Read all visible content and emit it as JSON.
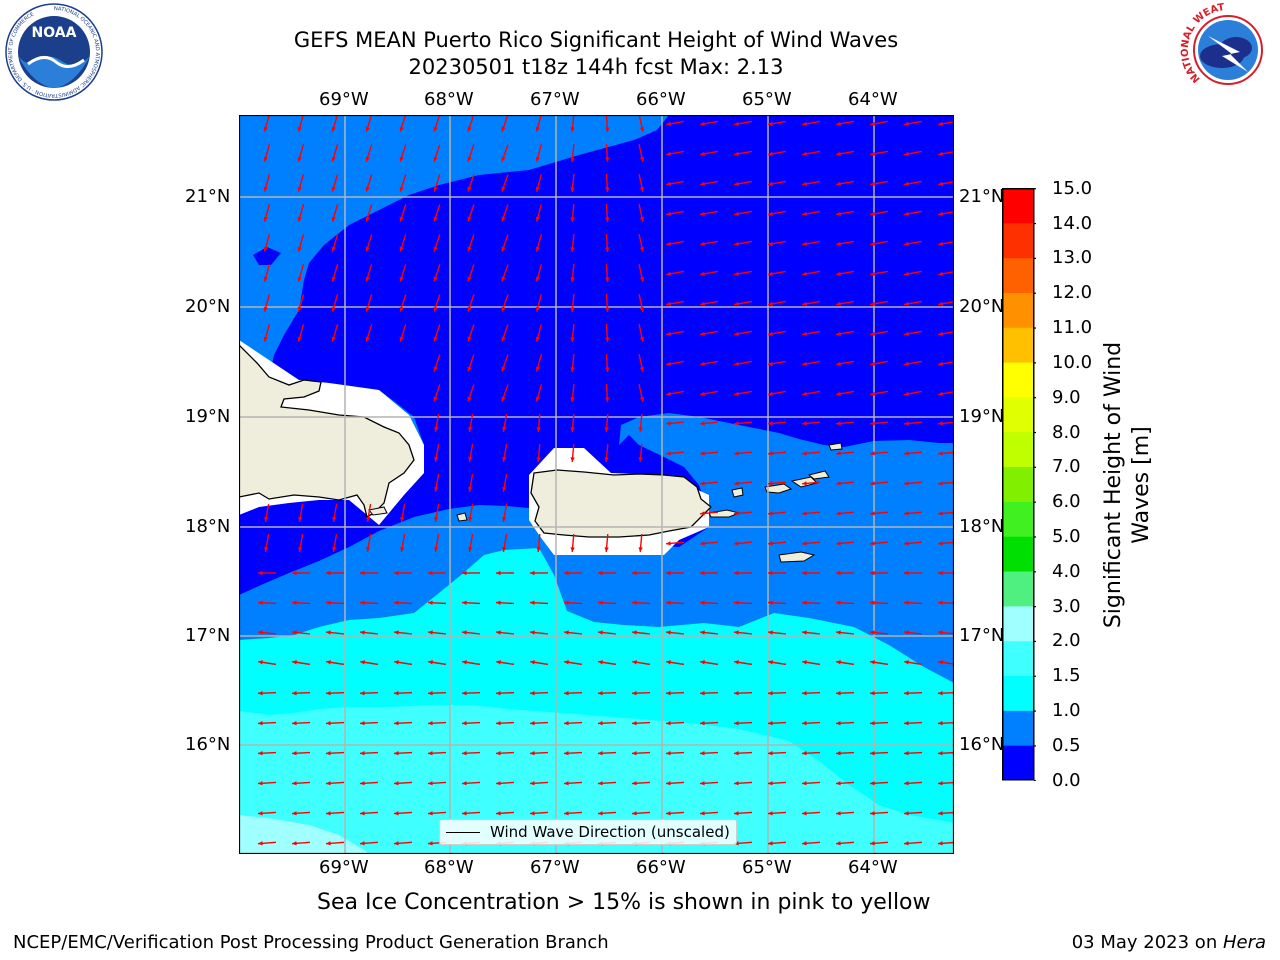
{
  "header": {
    "title_line1": "GEFS MEAN Puerto Rico Significant Height of Wind Waves",
    "title_line2": "20230501 t18z 144h fcst   Max: 2.13"
  },
  "logos": {
    "left": {
      "name": "NOAA",
      "text": "NOAA",
      "ring_text": "NATIONAL OCEANIC AND ATMOSPHERIC ADMINISTRATION · U.S. DEPARTMENT OF COMMERCE"
    },
    "right": {
      "name": "National Weather Service",
      "ring_text": "NATIONAL WEATHER SERVICE"
    }
  },
  "map": {
    "lon_ticks": [
      "69°W",
      "68°W",
      "67°W",
      "66°W",
      "65°W",
      "64°W"
    ],
    "lat_ticks": [
      "21°N",
      "20°N",
      "19°N",
      "18°N",
      "17°N",
      "16°N"
    ],
    "legend_label": "Wind Wave Direction (unscaled)",
    "arrow_color": "#ff0000",
    "land_color": "#efeedd"
  },
  "colorbar": {
    "label": "Significant Height of Wind Waves [m]",
    "tick_labels": [
      "0.0",
      "0.5",
      "1.0",
      "1.5",
      "2.0",
      "3.0",
      "4.0",
      "5.0",
      "6.0",
      "7.0",
      "8.0",
      "9.0",
      "10.0",
      "11.0",
      "12.0",
      "13.0",
      "14.0",
      "15.0"
    ],
    "colors": [
      "#0000ff",
      "#0080ff",
      "#00ffff",
      "#40ffff",
      "#a0ffff",
      "#50f080",
      "#00e000",
      "#40f020",
      "#80f000",
      "#c0ff00",
      "#e0ff00",
      "#ffff00",
      "#ffc000",
      "#ff9000",
      "#ff6000",
      "#ff3000",
      "#ff0000"
    ]
  },
  "subtitle": "Sea Ice Concentration > 15% is shown in pink to yellow",
  "footer": {
    "left": "NCEP/EMC/Verification Post Processing Product Generation Branch",
    "date": "03 May 2023 on ",
    "machine": "Hera"
  }
}
